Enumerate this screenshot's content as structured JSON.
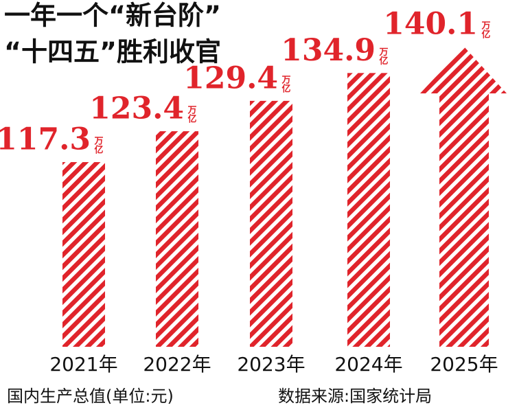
{
  "chart_data": {
    "type": "bar",
    "title": [
      "一年一个“新台阶”",
      "“十四五”胜利收官"
    ],
    "categories": [
      "2021年",
      "2022年",
      "2023年",
      "2024年",
      "2025年"
    ],
    "values": [
      117.3,
      123.4,
      129.4,
      134.9,
      140.1
    ],
    "unit": "万亿",
    "color": "#e0242b",
    "footer": [
      "国内生产总值(单位:元)",
      "数据来源:国家统计局"
    ]
  }
}
